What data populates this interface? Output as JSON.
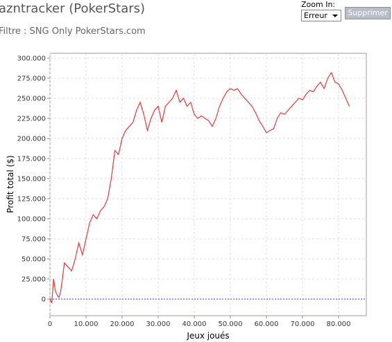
{
  "chart_data": {
    "type": "line",
    "title": "azntracker (PokerStars)",
    "subtitle": "Filtre : SNG Only PokerStars.com",
    "xlabel": "Jeux joués",
    "ylabel": "Profit total ($)",
    "color": "#e8383c",
    "reference_line": 0,
    "reference_color": "#3a3ad8",
    "grid": true,
    "x": [
      0,
      500,
      1000,
      1500,
      2000,
      2500,
      3000,
      4000,
      5000,
      6000,
      7000,
      8000,
      9000,
      10000,
      11000,
      12000,
      13000,
      14000,
      15000,
      16000,
      17000,
      18000,
      19000,
      20000,
      21000,
      22000,
      23000,
      24000,
      25000,
      26000,
      27000,
      28000,
      29000,
      30000,
      31000,
      32000,
      33000,
      34000,
      35000,
      36000,
      37000,
      38000,
      39000,
      40000,
      41000,
      42000,
      43000,
      44000,
      45000,
      46000,
      47000,
      48000,
      49000,
      50000,
      51000,
      52000,
      53000,
      54000,
      55000,
      56000,
      57000,
      58000,
      59000,
      60000,
      61000,
      62000,
      63000,
      64000,
      65000,
      66000,
      67000,
      68000,
      69000,
      70000,
      71000,
      72000,
      73000,
      74000,
      75000,
      76000,
      77000,
      78000,
      79000,
      80000,
      81000,
      82000,
      83000
    ],
    "values": [
      0,
      -5000,
      25000,
      10000,
      5000,
      2000,
      10000,
      45000,
      40000,
      35000,
      50000,
      70000,
      55000,
      75000,
      95000,
      105000,
      100000,
      110000,
      115000,
      125000,
      150000,
      185000,
      180000,
      200000,
      210000,
      215000,
      220000,
      235000,
      245000,
      230000,
      210000,
      225000,
      235000,
      240000,
      220000,
      240000,
      245000,
      250000,
      260000,
      245000,
      250000,
      240000,
      245000,
      230000,
      225000,
      228000,
      225000,
      222000,
      215000,
      225000,
      240000,
      250000,
      258000,
      262000,
      260000,
      262000,
      255000,
      250000,
      245000,
      240000,
      232000,
      222000,
      215000,
      207000,
      210000,
      212000,
      225000,
      232000,
      230000,
      235000,
      240000,
      245000,
      250000,
      248000,
      255000,
      260000,
      258000,
      265000,
      270000,
      262000,
      275000,
      282000,
      270000,
      268000,
      260000,
      250000,
      240000
    ],
    "xlim": [
      0,
      87700
    ],
    "ylim": [
      -20700,
      306000
    ],
    "xticks": [
      0,
      {
        "value": 10000,
        "label": "10.000"
      },
      {
        "value": 20000,
        "label": "20.000"
      },
      {
        "value": 30000,
        "label": "30.000"
      },
      {
        "value": 40000,
        "label": "40.000"
      },
      {
        "value": 50000,
        "label": "50.000"
      },
      {
        "value": 60000,
        "label": "60.000"
      },
      {
        "value": 70000,
        "label": "70.000"
      },
      {
        "value": 80000,
        "label": "80.000"
      }
    ],
    "yticks": [
      0,
      {
        "value": 25000,
        "label": "25.000"
      },
      {
        "value": 50000,
        "label": "50.000"
      },
      {
        "value": 75000,
        "label": "75.000"
      },
      {
        "value": 100000,
        "label": "100.000"
      },
      {
        "value": 125000,
        "label": "125.000"
      },
      {
        "value": 150000,
        "label": "150.000"
      },
      {
        "value": 175000,
        "label": "175.000"
      },
      {
        "value": 200000,
        "label": "200.000"
      },
      {
        "value": 225000,
        "label": "225.000"
      },
      {
        "value": 250000,
        "label": "250.000"
      },
      {
        "value": 275000,
        "label": "275.000"
      },
      {
        "value": 300000,
        "label": "300.000"
      }
    ]
  },
  "controls": {
    "zoom_label": "Zoom In:",
    "select_value": "Erreur",
    "button": "Supprimer"
  }
}
